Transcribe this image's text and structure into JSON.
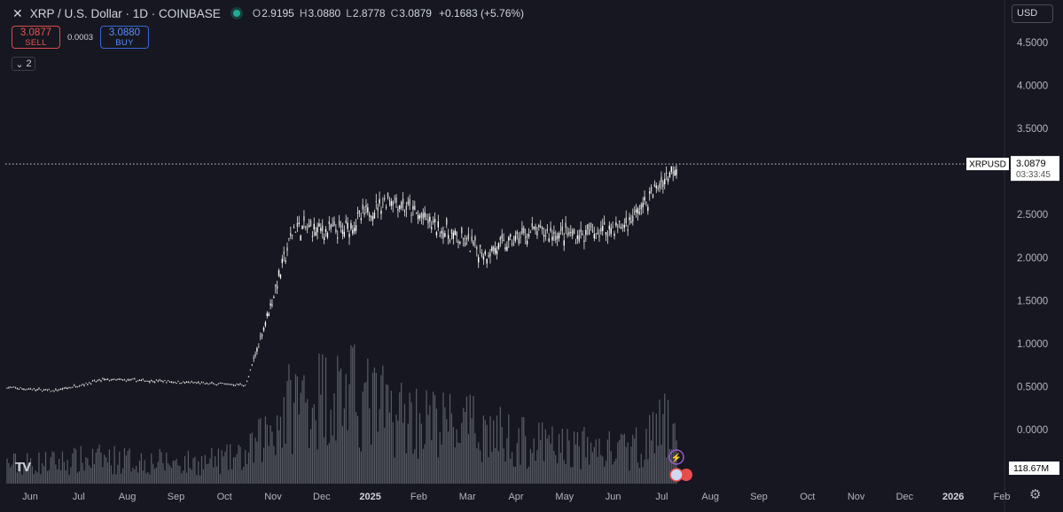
{
  "header": {
    "title": "XRP / U.S. Dollar · 1D · COINBASE",
    "open_label": "O",
    "open": "2.9195",
    "high_label": "H",
    "high": "3.0880",
    "low_label": "L",
    "low": "2.8778",
    "close_label": "C",
    "close": "3.0879",
    "change": "+0.1683 (+5.76%)"
  },
  "trade": {
    "sell_price": "3.0877",
    "sell_label": "SELL",
    "spread": "0.0003",
    "buy_price": "3.0880",
    "buy_label": "BUY"
  },
  "indicators_collapse": {
    "count": "2"
  },
  "currency": "USD",
  "price_tag": {
    "symbol": "XRPUSD",
    "price": "3.0879",
    "countdown": "03:33:45"
  },
  "volume_tag": "118.67M",
  "colors": {
    "background": "#161720",
    "candle": "#e8e8e8",
    "volume": "#5a5d66",
    "text": "#b2b5be"
  },
  "chart_data": {
    "type": "line",
    "title": "",
    "xlabel": "",
    "ylabel": "",
    "y_ticks": [
      "4.5000",
      "4.0000",
      "3.5000",
      "3.0000",
      "2.5000",
      "2.0000",
      "1.5000",
      "1.0000",
      "0.5000",
      "0.0000"
    ],
    "x_ticks": [
      "Jun",
      "Jul",
      "Aug",
      "Sep",
      "Oct",
      "Nov",
      "Dec",
      "2025",
      "Feb",
      "Mar",
      "Apr",
      "May",
      "Jun",
      "Jul",
      "Aug",
      "Sep",
      "Oct",
      "Nov",
      "Dec",
      "2026",
      "Feb"
    ],
    "ylim": [
      0,
      4.5
    ],
    "x": [
      "2024-06",
      "2024-07",
      "2024-08",
      "2024-09",
      "2024-10",
      "2024-11",
      "2024-12",
      "2025-01",
      "2025-02",
      "2025-03",
      "2025-04",
      "2025-05",
      "2025-06",
      "2025-07",
      "2025-07-14"
    ],
    "series": [
      {
        "values": [
          0.49,
          0.45,
          0.58,
          0.57,
          0.54,
          0.52,
          2.35,
          2.3,
          2.7,
          2.35,
          2.05,
          2.3,
          2.25,
          2.4,
          3.09
        ]
      }
    ],
    "volume_series": {
      "values": [
        55,
        60,
        70,
        62,
        58,
        75,
        230,
        260,
        200,
        170,
        150,
        110,
        100,
        90,
        180
      ]
    }
  }
}
